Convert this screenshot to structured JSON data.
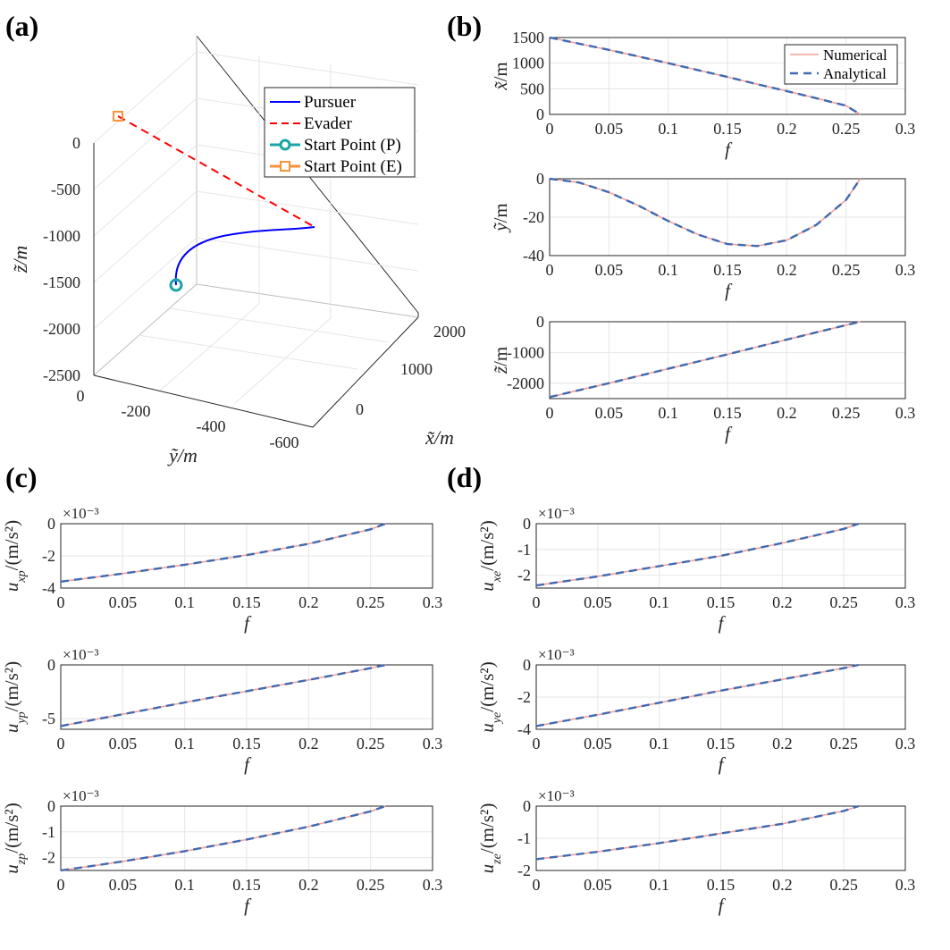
{
  "panel_labels": [
    "(a)",
    "(b)",
    "(c)",
    "(d)"
  ],
  "legend_3d": {
    "pursuer": "Pursuer",
    "evader": "Evader",
    "start_p": "Start Point (P)",
    "start_e": "Start Point (E)"
  },
  "legend_2d": {
    "numerical": "Numerical",
    "analytical": "Analytical"
  },
  "colors": {
    "pursuer": "#0000ff",
    "evader": "#ff0000",
    "start_p": "#1aa5a5",
    "start_e": "#f7923a",
    "numerical": "#f4a09a",
    "analytical": "#4169b0"
  },
  "chart_data": [
    {
      "id": "a",
      "type": "line3d",
      "title": "",
      "xlabel": "x̃/m",
      "ylabel": "ỹ/m",
      "zlabel": "z̃/m",
      "x_ticks": [
        "2000",
        "1000",
        "0"
      ],
      "y_ticks": [
        "0",
        "-200",
        "-400",
        "-600"
      ],
      "z_ticks": [
        "0",
        "-500",
        "-1000",
        "-1500",
        "-2000",
        "-2500"
      ],
      "series": [
        {
          "name": "Pursuer",
          "x": [
            0,
            200,
            500,
            900,
            1300,
            1700,
            1990
          ],
          "y": [
            -100,
            -200,
            -300,
            -400,
            -480,
            -540,
            -570
          ],
          "z": [
            -2500,
            -1950,
            -1450,
            -1050,
            -750,
            -600,
            -560
          ]
        },
        {
          "name": "Evader",
          "x": [
            1500,
            1800,
            1990
          ],
          "y": [
            0,
            -300,
            -570
          ],
          "z": [
            0,
            -300,
            -560
          ]
        }
      ]
    },
    {
      "id": "b1",
      "type": "line",
      "xlabel": "f",
      "ylabel": "x̃/m",
      "xlim": [
        0,
        0.3
      ],
      "ylim": [
        0,
        1500
      ],
      "x_ticks": [
        "0",
        "0.05",
        "0.1",
        "0.15",
        "0.2",
        "0.25",
        "0.3"
      ],
      "y_ticks": [
        "0",
        "500",
        "1000",
        "1500"
      ],
      "exponent": "",
      "x": [
        0,
        0.025,
        0.05,
        0.075,
        0.1,
        0.125,
        0.15,
        0.175,
        0.2,
        0.225,
        0.25,
        0.262
      ],
      "series": [
        {
          "name": "Numerical",
          "values": [
            1500,
            1380,
            1260,
            1130,
            1000,
            865,
            730,
            590,
            455,
            315,
            170,
            0
          ]
        },
        {
          "name": "Analytical",
          "values": [
            1500,
            1380,
            1260,
            1130,
            1000,
            865,
            730,
            590,
            455,
            315,
            170,
            0
          ]
        }
      ]
    },
    {
      "id": "b2",
      "type": "line",
      "xlabel": "f",
      "ylabel": "ỹ/m",
      "xlim": [
        0,
        0.3
      ],
      "ylim": [
        -40,
        0
      ],
      "x_ticks": [
        "0",
        "0.05",
        "0.1",
        "0.15",
        "0.2",
        "0.25",
        "0.3"
      ],
      "y_ticks": [
        "-40",
        "-20",
        "0"
      ],
      "exponent": "",
      "x": [
        0,
        0.025,
        0.05,
        0.075,
        0.1,
        0.125,
        0.15,
        0.175,
        0.2,
        0.225,
        0.25,
        0.262
      ],
      "series": [
        {
          "name": "Numerical",
          "values": [
            0,
            -2,
            -7,
            -14,
            -22,
            -29,
            -34,
            -35,
            -32,
            -24,
            -11,
            0
          ]
        },
        {
          "name": "Analytical",
          "values": [
            0,
            -2,
            -7,
            -14,
            -22,
            -29,
            -34,
            -35,
            -32,
            -24,
            -11,
            0
          ]
        }
      ]
    },
    {
      "id": "b3",
      "type": "line",
      "xlabel": "f",
      "ylabel": "z̃/m",
      "xlim": [
        0,
        0.3
      ],
      "ylim": [
        -2500,
        0
      ],
      "x_ticks": [
        "0",
        "0.05",
        "0.1",
        "0.15",
        "0.2",
        "0.25",
        "0.3"
      ],
      "y_ticks": [
        "-2000",
        "-1000",
        "0"
      ],
      "exponent": "",
      "x": [
        0,
        0.05,
        0.1,
        0.15,
        0.2,
        0.25,
        0.262
      ],
      "series": [
        {
          "name": "Numerical",
          "values": [
            -2450,
            -2000,
            -1530,
            -1060,
            -580,
            -110,
            0
          ]
        },
        {
          "name": "Analytical",
          "values": [
            -2450,
            -2000,
            -1530,
            -1060,
            -580,
            -110,
            0
          ]
        }
      ]
    },
    {
      "id": "c1",
      "type": "line",
      "xlabel": "f",
      "ylabel": "uxp/(m/s²)",
      "xlim": [
        0,
        0.3
      ],
      "ylim": [
        -4,
        0
      ],
      "x_ticks": [
        "0",
        "0.05",
        "0.1",
        "0.15",
        "0.2",
        "0.25",
        "0.3"
      ],
      "y_ticks": [
        "-4",
        "-2",
        "0"
      ],
      "exponent": "×10⁻³",
      "x": [
        0,
        0.05,
        0.1,
        0.15,
        0.2,
        0.25,
        0.262
      ],
      "series": [
        {
          "name": "Numerical",
          "values": [
            -3.6,
            -3.1,
            -2.55,
            -1.95,
            -1.25,
            -0.35,
            0
          ]
        },
        {
          "name": "Analytical",
          "values": [
            -3.6,
            -3.1,
            -2.55,
            -1.95,
            -1.25,
            -0.35,
            0
          ]
        }
      ]
    },
    {
      "id": "c2",
      "type": "line",
      "xlabel": "f",
      "ylabel": "uyp/(m/s²)",
      "xlim": [
        0,
        0.3
      ],
      "ylim": [
        -6,
        0
      ],
      "x_ticks": [
        "0",
        "0.05",
        "0.1",
        "0.15",
        "0.2",
        "0.25",
        "0.3"
      ],
      "y_ticks": [
        "-5",
        "0"
      ],
      "exponent": "×10⁻³",
      "x": [
        0,
        0.05,
        0.1,
        0.15,
        0.2,
        0.25,
        0.262
      ],
      "series": [
        {
          "name": "Numerical",
          "values": [
            -5.7,
            -4.6,
            -3.5,
            -2.45,
            -1.4,
            -0.3,
            0
          ]
        },
        {
          "name": "Analytical",
          "values": [
            -5.7,
            -4.6,
            -3.5,
            -2.45,
            -1.4,
            -0.3,
            0
          ]
        }
      ]
    },
    {
      "id": "c3",
      "type": "line",
      "xlabel": "f",
      "ylabel": "uzp/(m/s²)",
      "xlim": [
        0,
        0.3
      ],
      "ylim": [
        -2.5,
        0
      ],
      "x_ticks": [
        "0",
        "0.05",
        "0.1",
        "0.15",
        "0.2",
        "0.25",
        "0.3"
      ],
      "y_ticks": [
        "-2",
        "-1",
        "0"
      ],
      "exponent": "×10⁻³",
      "x": [
        0,
        0.05,
        0.1,
        0.15,
        0.2,
        0.25,
        0.262
      ],
      "series": [
        {
          "name": "Numerical",
          "values": [
            -2.5,
            -2.15,
            -1.75,
            -1.3,
            -0.8,
            -0.2,
            0
          ]
        },
        {
          "name": "Analytical",
          "values": [
            -2.5,
            -2.15,
            -1.75,
            -1.3,
            -0.8,
            -0.2,
            0
          ]
        }
      ]
    },
    {
      "id": "d1",
      "type": "line",
      "xlabel": "f",
      "ylabel": "uxe/(m/s²)",
      "xlim": [
        0,
        0.3
      ],
      "ylim": [
        -2.5,
        0
      ],
      "x_ticks": [
        "0",
        "0.05",
        "0.1",
        "0.15",
        "0.2",
        "0.25",
        "0.3"
      ],
      "y_ticks": [
        "-2",
        "-1",
        "0"
      ],
      "exponent": "×10⁻³",
      "x": [
        0,
        0.05,
        0.1,
        0.15,
        0.2,
        0.25,
        0.262
      ],
      "series": [
        {
          "name": "Numerical",
          "values": [
            -2.4,
            -2.05,
            -1.65,
            -1.25,
            -0.75,
            -0.2,
            0
          ]
        },
        {
          "name": "Analytical",
          "values": [
            -2.4,
            -2.05,
            -1.65,
            -1.25,
            -0.75,
            -0.2,
            0
          ]
        }
      ]
    },
    {
      "id": "d2",
      "type": "line",
      "xlabel": "f",
      "ylabel": "uye/(m/s²)",
      "xlim": [
        0,
        0.3
      ],
      "ylim": [
        -4,
        0
      ],
      "x_ticks": [
        "0",
        "0.05",
        "0.1",
        "0.15",
        "0.2",
        "0.25",
        "0.3"
      ],
      "y_ticks": [
        "-4",
        "-2",
        "0"
      ],
      "exponent": "×10⁻³",
      "x": [
        0,
        0.05,
        0.1,
        0.15,
        0.2,
        0.25,
        0.262
      ],
      "series": [
        {
          "name": "Numerical",
          "values": [
            -3.8,
            -3.1,
            -2.35,
            -1.6,
            -0.9,
            -0.2,
            0
          ]
        },
        {
          "name": "Analytical",
          "values": [
            -3.8,
            -3.1,
            -2.35,
            -1.6,
            -0.9,
            -0.2,
            0
          ]
        }
      ]
    },
    {
      "id": "d3",
      "type": "line",
      "xlabel": "f",
      "ylabel": "uze/(m/s²)",
      "xlim": [
        0,
        0.3
      ],
      "ylim": [
        -2,
        0
      ],
      "x_ticks": [
        "0",
        "0.05",
        "0.1",
        "0.15",
        "0.2",
        "0.25",
        "0.3"
      ],
      "y_ticks": [
        "-2",
        "-1",
        "0"
      ],
      "exponent": "×10⁻³",
      "x": [
        0,
        0.05,
        0.1,
        0.15,
        0.2,
        0.25,
        0.262
      ],
      "series": [
        {
          "name": "Numerical",
          "values": [
            -1.65,
            -1.42,
            -1.15,
            -0.85,
            -0.55,
            -0.15,
            0
          ]
        },
        {
          "name": "Analytical",
          "values": [
            -1.65,
            -1.42,
            -1.15,
            -0.85,
            -0.55,
            -0.15,
            0
          ]
        }
      ]
    }
  ]
}
